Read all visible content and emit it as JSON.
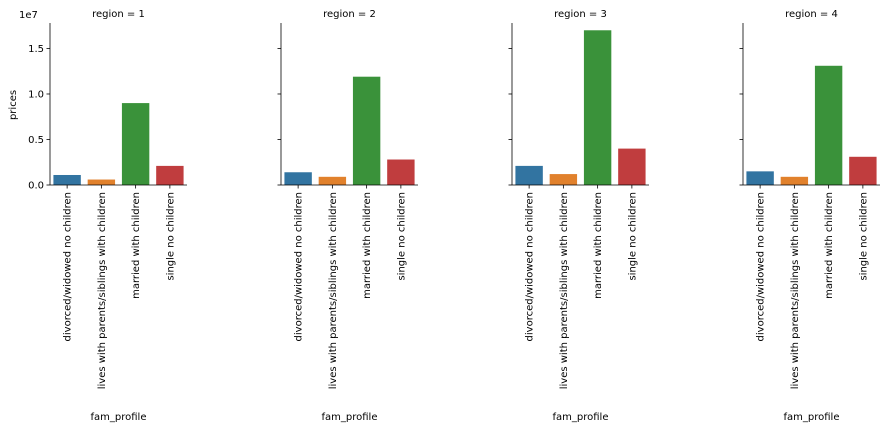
{
  "chart_data": {
    "type": "bar",
    "facet_var": "region",
    "xlabel": "fam_profile",
    "ylabel": "prices",
    "y_offset_label": "1e7",
    "ylim": [
      0,
      1.78
    ],
    "y_ticks": [
      0.0,
      0.5,
      1.0,
      1.5
    ],
    "y_tick_labels": [
      "0.0",
      "0.5",
      "1.0",
      "1.5"
    ],
    "grid": false,
    "sharey": true,
    "categories": [
      "divorced/widowed no children",
      "lives with parents/siblings with children",
      "married with children",
      "single no children"
    ],
    "colors": [
      "#3274a1",
      "#e1812c",
      "#3a923a",
      "#c03d3e"
    ],
    "panels": [
      {
        "title": "region = 1",
        "values": [
          0.11,
          0.06,
          0.9,
          0.21
        ]
      },
      {
        "title": "region = 2",
        "values": [
          0.14,
          0.09,
          1.19,
          0.28
        ]
      },
      {
        "title": "region = 3",
        "values": [
          0.21,
          0.12,
          1.7,
          0.4
        ]
      },
      {
        "title": "region = 4",
        "values": [
          0.15,
          0.09,
          1.31,
          0.31
        ]
      }
    ]
  }
}
